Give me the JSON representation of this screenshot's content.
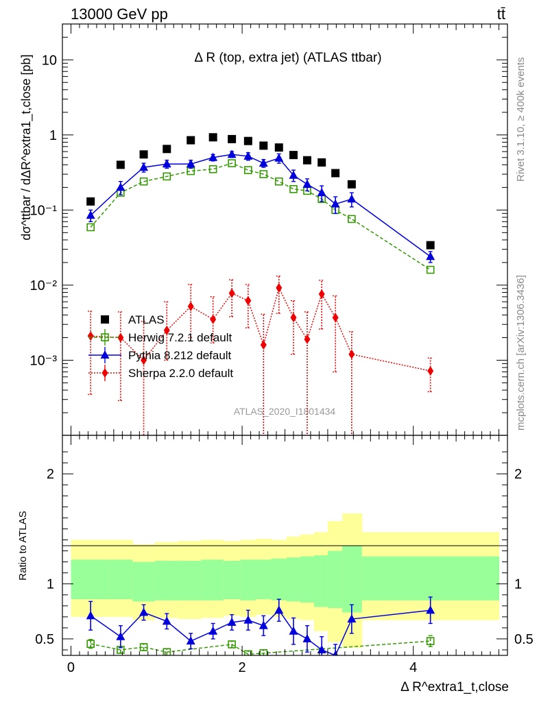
{
  "header": {
    "left": "13000 GeV pp",
    "right": "tt̄"
  },
  "side_text": {
    "top": "Rivet 3.1.10, ≥ 400k events",
    "bottom": "mcplots.cern.ch [arXiv:1306.3436]"
  },
  "chart_data": [
    {
      "type": "scatter",
      "title": "Δ R (top, extra jet) (ATLAS ttbar)",
      "watermark": "ATLAS_2020_I1801434",
      "ylabel": "dσ^ttbar / dΔR^extra1_t,close [pb]",
      "xlabel": "Δ R^extra1_t,close",
      "yscale": "log",
      "xlim": [
        -0.1,
        5.1
      ],
      "ylim": [
        0.0001,
        30
      ],
      "y_tick_labels": [
        "10⁻³",
        "10⁻²",
        "10⁻¹",
        "1",
        "10"
      ],
      "legend_position": "middle-left",
      "x": [
        0.23,
        0.58,
        0.85,
        1.12,
        1.4,
        1.66,
        1.88,
        2.07,
        2.25,
        2.43,
        2.6,
        2.76,
        2.93,
        3.09,
        3.28,
        4.2
      ],
      "series": [
        {
          "name": "ATLAS",
          "color": "#000000",
          "marker": "square",
          "values": [
            0.13,
            0.4,
            0.55,
            0.65,
            0.85,
            0.93,
            0.88,
            0.83,
            0.72,
            0.68,
            0.54,
            0.46,
            0.43,
            0.31,
            0.22,
            0.034
          ]
        },
        {
          "name": "Herwig 7.2.1 default",
          "color": "#339900",
          "marker": "open-square",
          "line": "dashed",
          "values": [
            0.059,
            0.17,
            0.24,
            0.28,
            0.33,
            0.35,
            0.42,
            0.34,
            0.3,
            0.24,
            0.19,
            0.18,
            0.14,
            0.1,
            0.076,
            0.016
          ]
        },
        {
          "name": "Pythia 8.212 default",
          "color": "#0000dd",
          "marker": "triangle",
          "line": "solid",
          "values": [
            0.085,
            0.2,
            0.37,
            0.41,
            0.41,
            0.5,
            0.55,
            0.52,
            0.42,
            0.49,
            0.29,
            0.22,
            0.17,
            0.12,
            0.14,
            0.024
          ],
          "errors": [
            0.015,
            0.04,
            0.05,
            0.05,
            0.05,
            0.05,
            0.05,
            0.06,
            0.05,
            0.07,
            0.05,
            0.04,
            0.04,
            0.03,
            0.03,
            0.004
          ]
        },
        {
          "name": "Sherpa 2.2.0 default",
          "color": "#ee0000",
          "marker": "diamond",
          "line": "dotted",
          "values": [
            0.0021,
            0.002,
            0.001,
            0.0025,
            0.0052,
            0.0035,
            0.0078,
            0.0062,
            0.0016,
            0.0092,
            0.0037,
            0.0019,
            0.0076,
            0.0037,
            0.0012,
            0.00072
          ],
          "err_lo": [
            0.00175,
            0.00171,
            0.00096,
            0.0015,
            0.0032,
            0.0018,
            0.004,
            0.0035,
            0.0016,
            0.005,
            0.0025,
            0.0019,
            0.005,
            0.003,
            0.0012,
            0.00034
          ],
          "err_hi": [
            0.0024,
            0.0024,
            0.0023,
            0.0035,
            0.005,
            0.0035,
            0.004,
            0.004,
            0.0025,
            0.004,
            0.0025,
            0.0025,
            0.004,
            0.0035,
            0.0012,
            0.00035
          ]
        }
      ]
    },
    {
      "type": "scatter",
      "ylabel": "Ratio to ATLAS",
      "xlabel": "Δ R^extra1_t,close",
      "xlim": [
        -0.1,
        5.1
      ],
      "ylim": [
        0.35,
        2.35
      ],
      "x_ticks": [
        0,
        2,
        4
      ],
      "y_ticks": [
        0.5,
        1,
        2
      ],
      "band_edges": [
        0,
        0.45,
        0.72,
        0.98,
        1.25,
        1.52,
        1.78,
        1.98,
        2.16,
        2.34,
        2.52,
        2.68,
        2.84,
        3.0,
        3.17,
        3.4,
        5.0
      ],
      "band_yellow_lo": [
        0.7,
        0.7,
        0.67,
        0.69,
        0.68,
        0.69,
        0.71,
        0.7,
        0.72,
        0.7,
        0.68,
        0.67,
        0.57,
        0.47,
        0.42,
        0.67
      ],
      "band_yellow_hi": [
        1.4,
        1.4,
        1.36,
        1.38,
        1.39,
        1.4,
        1.39,
        1.4,
        1.41,
        1.4,
        1.43,
        1.45,
        1.47,
        1.57,
        1.64,
        1.47
      ],
      "band_green_lo": [
        0.86,
        0.86,
        0.84,
        0.85,
        0.85,
        0.85,
        0.86,
        0.85,
        0.86,
        0.85,
        0.84,
        0.83,
        0.79,
        0.78,
        0.74,
        0.85
      ],
      "band_green_hi": [
        1.22,
        1.22,
        1.2,
        1.21,
        1.21,
        1.22,
        1.21,
        1.22,
        1.22,
        1.23,
        1.24,
        1.25,
        1.26,
        1.3,
        1.35,
        1.25
      ],
      "series": [
        {
          "name": "Herwig 7.2.1 default",
          "color": "#339900",
          "x": [
            0.23,
            0.58,
            0.85,
            1.12,
            1.88,
            2.07,
            2.25,
            4.2
          ],
          "values": [
            0.455,
            0.4,
            0.425,
            0.38,
            0.45,
            0.36,
            0.37,
            0.48
          ],
          "errors": [
            0.04,
            0.03,
            0.03,
            0.03,
            0.03,
            0.03,
            0.03,
            0.05
          ]
        },
        {
          "name": "Pythia 8.212 default",
          "color": "#0000dd",
          "x": [
            0.23,
            0.58,
            0.85,
            1.12,
            1.4,
            1.66,
            1.88,
            2.07,
            2.25,
            2.43,
            2.6,
            2.76,
            2.93,
            3.09,
            3.28,
            4.2
          ],
          "values": [
            0.71,
            0.52,
            0.74,
            0.66,
            0.48,
            0.57,
            0.65,
            0.67,
            0.62,
            0.76,
            0.57,
            0.5,
            0.4,
            0.35,
            0.68,
            0.76
          ],
          "errors": [
            0.13,
            0.1,
            0.07,
            0.07,
            0.07,
            0.07,
            0.07,
            0.09,
            0.09,
            0.1,
            0.12,
            0.12,
            0.12,
            0.1,
            0.13,
            0.12
          ]
        }
      ]
    }
  ]
}
